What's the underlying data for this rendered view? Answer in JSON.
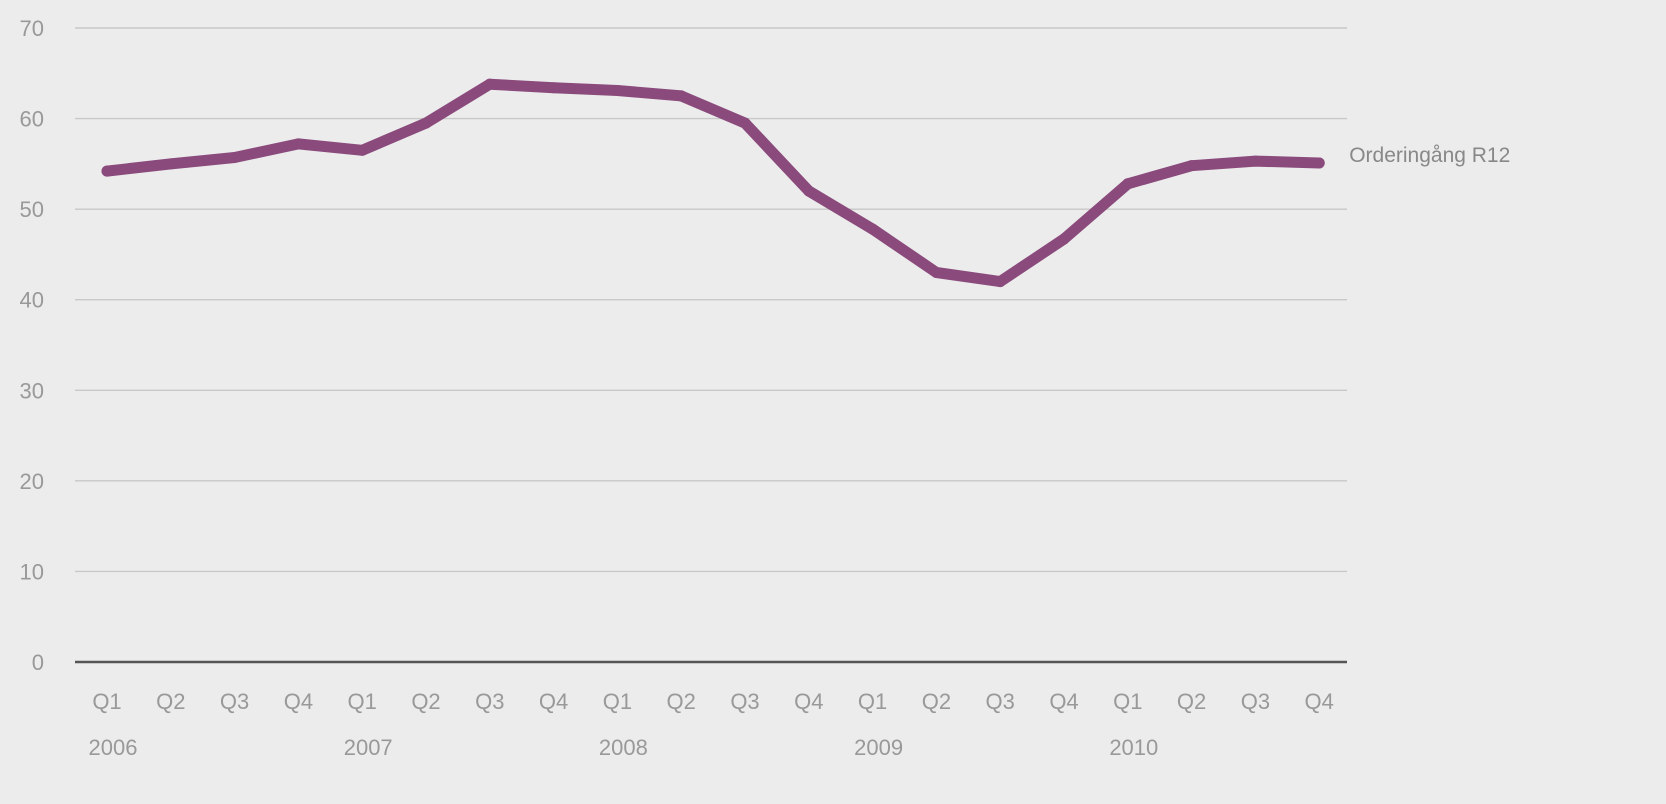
{
  "chart_data": {
    "type": "line",
    "title": "",
    "xlabel": "",
    "ylabel": "",
    "ylim": [
      0,
      70
    ],
    "yticks": [
      0,
      10,
      20,
      30,
      40,
      50,
      60,
      70
    ],
    "grid": true,
    "legend": "none",
    "categories": [
      "Q1",
      "Q2",
      "Q3",
      "Q4",
      "Q1",
      "Q2",
      "Q3",
      "Q4",
      "Q1",
      "Q2",
      "Q3",
      "Q4",
      "Q1",
      "Q2",
      "Q3",
      "Q4",
      "Q1",
      "Q2",
      "Q3",
      "Q4"
    ],
    "years": [
      "2006",
      "2007",
      "2008",
      "2009",
      "2010"
    ],
    "series": [
      {
        "name": "Orderingång R12",
        "color": "#8a4a7c",
        "values": [
          54.2,
          55.0,
          55.7,
          57.2,
          56.5,
          59.5,
          63.8,
          63.4,
          63.1,
          62.5,
          59.5,
          52.0,
          47.8,
          43.0,
          42.0,
          46.7,
          52.8,
          54.8,
          55.3,
          55.1
        ]
      }
    ]
  }
}
